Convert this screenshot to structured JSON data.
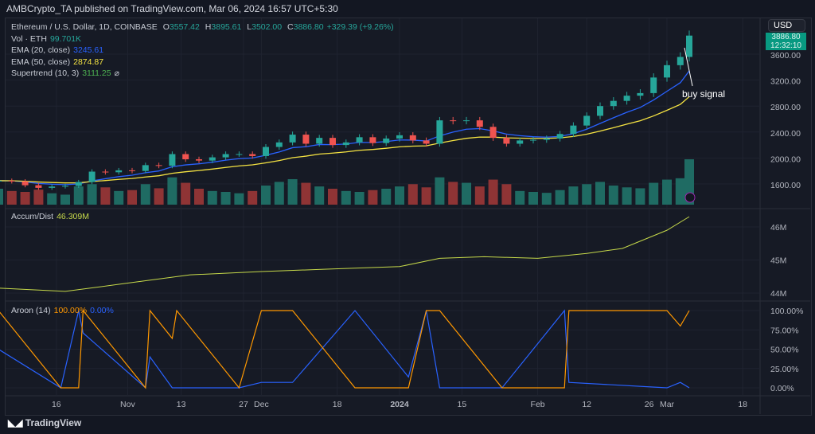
{
  "header": {
    "published": "AMBCrypto_TA published on TradingView.com, Mar 06, 2024 16:57 UTC+5:30"
  },
  "legend": {
    "symbol": "Ethereum / U.S. Dollar, 1D, COINBASE",
    "o_label": "O",
    "o": "3557.42",
    "h_label": "H",
    "h": "3895.61",
    "l_label": "L",
    "l": "3502.00",
    "c_label": "C",
    "c": "3886.80",
    "change": "+329.39 (+9.26%)",
    "vol_label": "Vol · ETH",
    "vol": "99.701K",
    "ema20_label": "EMA (20, close)",
    "ema20": "3245.61",
    "ema50_label": "EMA (50, close)",
    "ema50": "2874.87",
    "st_label": "Supertrend (10, 3)",
    "st": "3111.25",
    "st_icon": "⌀",
    "ad_label": "Accum/Dist",
    "ad": "46.309M",
    "aroon_label": "Aroon (14)",
    "aroon_up": "100.00%",
    "aroon_down": "0.00%"
  },
  "currency": "USD",
  "countdown": "12:32:10",
  "annotation": "buy signal",
  "footer": "TradingView",
  "colors": {
    "up": "#26a69a",
    "down": "#ef5350",
    "ema20": "#2962ff",
    "ema50": "#f5e342",
    "supertrend_up": "#4caf50",
    "supertrend_down": "#ef5350",
    "ad": "#c6d94a",
    "aroon_up": "#ff9800",
    "aroon_down": "#2962ff"
  },
  "chart_data": [
    {
      "type": "candlestick",
      "ylim": [
        1400,
        3900
      ],
      "yticks": [
        "3600.00",
        "3200.00",
        "2800.00",
        "2400.00",
        "2000.00",
        "1600.00"
      ],
      "ytick_values": [
        3600,
        3200,
        2800,
        2400,
        2000,
        1600
      ],
      "x": [
        "2023-10-03",
        "2023-10-06",
        "2023-10-09",
        "2023-10-12",
        "2023-10-15",
        "2023-10-18",
        "2023-10-21",
        "2023-10-24",
        "2023-10-27",
        "2023-10-30",
        "2023-11-02",
        "2023-11-05",
        "2023-11-08",
        "2023-11-11",
        "2023-11-14",
        "2023-11-17",
        "2023-11-20",
        "2023-11-23",
        "2023-11-26",
        "2023-11-29",
        "2023-12-02",
        "2023-12-05",
        "2023-12-08",
        "2023-12-11",
        "2023-12-14",
        "2023-12-17",
        "2023-12-20",
        "2023-12-23",
        "2023-12-26",
        "2023-12-29",
        "2024-01-01",
        "2024-01-04",
        "2024-01-07",
        "2024-01-10",
        "2024-01-13",
        "2024-01-16",
        "2024-01-19",
        "2024-01-22",
        "2024-01-25",
        "2024-01-28",
        "2024-01-31",
        "2024-02-03",
        "2024-02-06",
        "2024-02-09",
        "2024-02-12",
        "2024-02-15",
        "2024-02-18",
        "2024-02-21",
        "2024-02-24",
        "2024-02-27",
        "2024-03-01",
        "2024-03-04",
        "2024-03-06"
      ],
      "close": [
        1650,
        1640,
        1580,
        1540,
        1560,
        1570,
        1630,
        1790,
        1780,
        1810,
        1800,
        1890,
        1880,
        2060,
        1980,
        1960,
        2010,
        2060,
        2060,
        2030,
        2170,
        2240,
        2360,
        2220,
        2310,
        2200,
        2240,
        2320,
        2230,
        2300,
        2350,
        2270,
        2220,
        2580,
        2570,
        2580,
        2480,
        2310,
        2220,
        2270,
        2280,
        2300,
        2370,
        2500,
        2650,
        2800,
        2880,
        2960,
        3000,
        3240,
        3430,
        3557,
        3886
      ],
      "volume_k": [
        35,
        30,
        28,
        33,
        25,
        22,
        40,
        45,
        38,
        30,
        32,
        45,
        36,
        60,
        48,
        35,
        30,
        28,
        25,
        30,
        42,
        50,
        56,
        48,
        40,
        35,
        30,
        28,
        32,
        35,
        40,
        45,
        38,
        60,
        50,
        48,
        40,
        55,
        45,
        30,
        28,
        26,
        32,
        40,
        45,
        50,
        42,
        38,
        36,
        48,
        55,
        58,
        99.7
      ]
    },
    {
      "type": "line",
      "name": "Accum/Dist",
      "yticks": [
        "46M",
        "45M",
        "44M"
      ],
      "ytick_values": [
        46,
        45,
        44
      ],
      "x": [
        "2023-10-03",
        "2023-10-18",
        "2023-11-01",
        "2023-11-15",
        "2023-12-01",
        "2023-12-15",
        "2024-01-01",
        "2024-01-10",
        "2024-01-20",
        "2024-02-01",
        "2024-02-12",
        "2024-02-20",
        "2024-03-01",
        "2024-03-06"
      ],
      "values_m": [
        44.15,
        44.05,
        44.3,
        44.55,
        44.65,
        44.72,
        44.8,
        45.05,
        45.1,
        45.05,
        45.2,
        45.35,
        45.9,
        46.31
      ]
    },
    {
      "type": "line",
      "name": "Aroon (14)",
      "yticks": [
        "100.00%",
        "75.00%",
        "50.00%",
        "25.00%",
        "0.00%"
      ],
      "ytick_values": [
        100,
        75,
        50,
        25,
        0
      ],
      "x": [
        "2023-10-03",
        "2023-10-17",
        "2023-10-21",
        "2023-10-22",
        "2023-11-05",
        "2023-11-06",
        "2023-11-11",
        "2023-11-12",
        "2023-11-26",
        "2023-12-01",
        "2023-12-08",
        "2023-12-22",
        "2024-01-03",
        "2024-01-07",
        "2024-01-10",
        "2024-01-24",
        "2024-02-07",
        "2024-02-08",
        "2024-03-01",
        "2024-03-04",
        "2024-03-06"
      ],
      "up": [
        100,
        0,
        0,
        100,
        0,
        100,
        64,
        100,
        0,
        100,
        100,
        0,
        0,
        100,
        100,
        0,
        0,
        100,
        100,
        80,
        100
      ],
      "down": [
        50,
        0,
        100,
        71,
        0,
        40,
        0,
        0,
        0,
        7,
        7,
        100,
        14,
        100,
        0,
        0,
        100,
        7,
        0,
        7,
        0
      ]
    },
    {
      "type": "axis",
      "xticks": [
        "16",
        "Nov",
        "13",
        "27",
        "Dec",
        "18",
        "2024",
        "15",
        "Feb",
        "12",
        "26",
        "Mar",
        "18"
      ],
      "xtick_dates": [
        "2023-10-16",
        "2023-11-01",
        "2023-11-13",
        "2023-11-27",
        "2023-12-01",
        "2023-12-18",
        "2024-01-01",
        "2024-01-15",
        "2024-02-01",
        "2024-02-12",
        "2024-02-26",
        "2024-03-01",
        "2024-03-18"
      ]
    }
  ]
}
